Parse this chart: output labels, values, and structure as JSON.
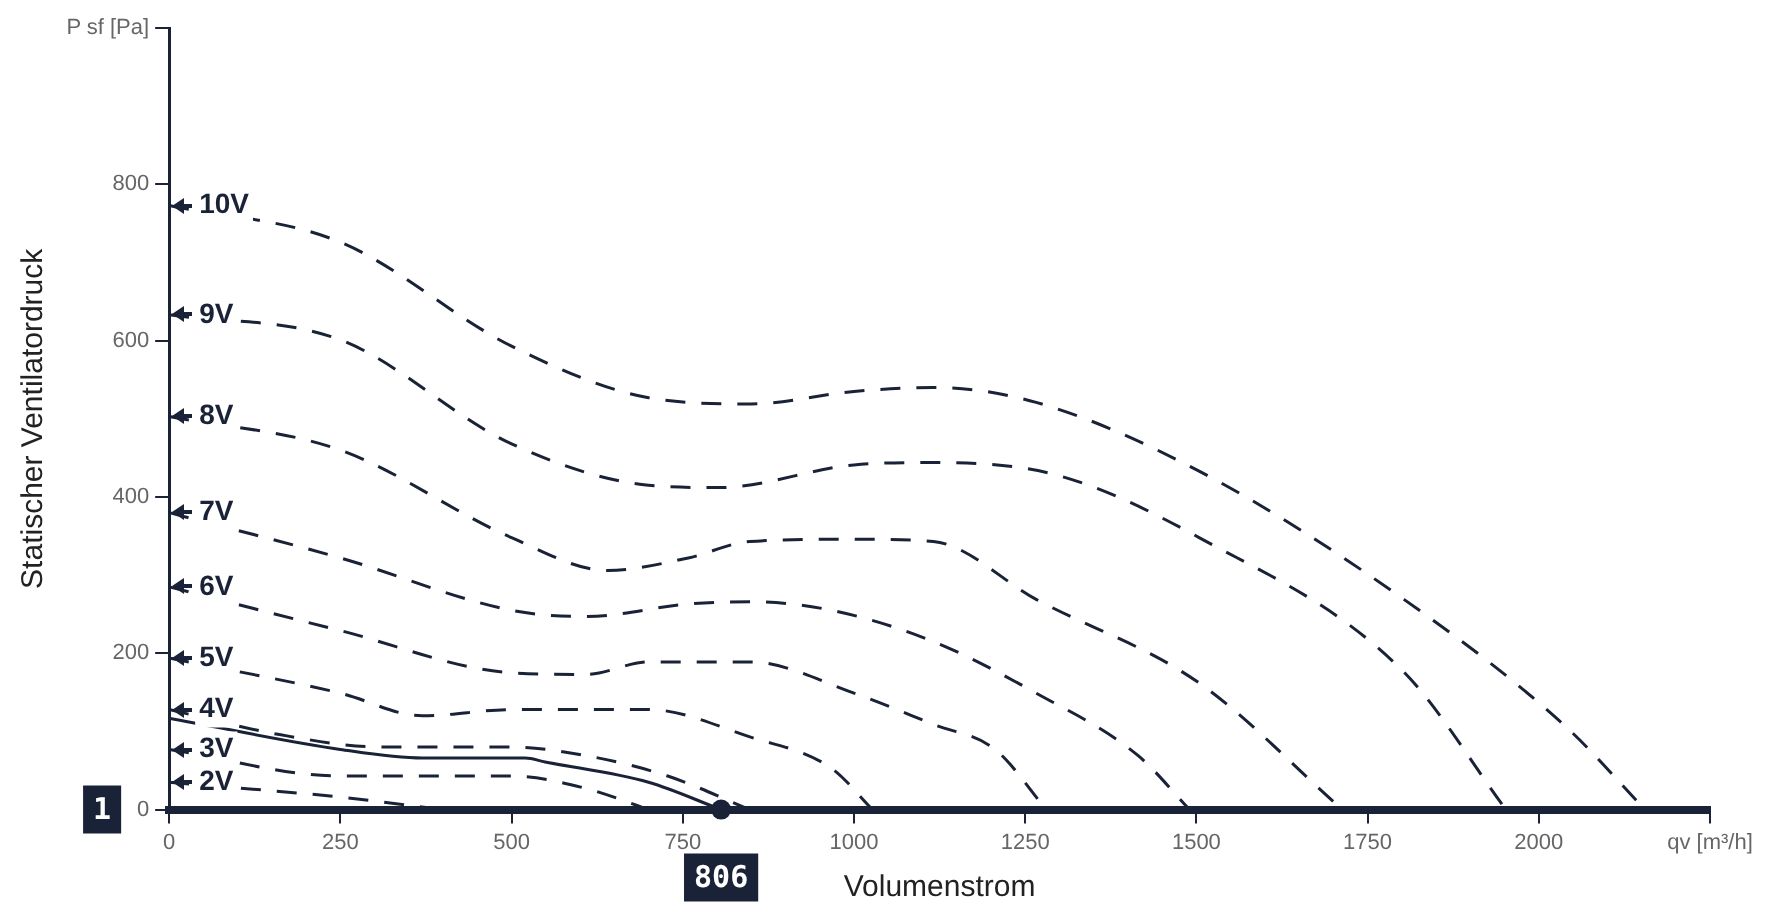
{
  "chart_data": {
    "type": "line",
    "xlabel": "Volumenstrom",
    "ylabel": "Statischer Ventilatordruck",
    "xlim": [
      0,
      2250
    ],
    "ylim": [
      0,
      1000
    ],
    "xticks": [
      0,
      250,
      500,
      750,
      1000,
      1250,
      1500,
      1750,
      2000,
      {
        "value": 2250,
        "label": "qv [m³/h]"
      }
    ],
    "yticks": [
      0,
      200,
      400,
      600,
      800,
      {
        "value": 1000,
        "label": "P sf [Pa]"
      }
    ],
    "grid": false,
    "legend": "left",
    "marker": "none",
    "series": [
      {
        "name": "10V",
        "color": "#1a2238",
        "line_style": "dashed",
        "x": [
          0,
          250,
          500,
          700,
          850,
          1000,
          1116,
          1266,
          1504,
          1803,
          2042,
          2155
        ],
        "values": [
          773,
          726,
          593,
          527,
          519,
          535,
          540,
          521,
          433,
          269,
          104,
          0
        ]
      },
      {
        "name": "9V",
        "color": "#1a2238",
        "line_style": "dashed",
        "x": [
          0,
          250,
          500,
          700,
          803,
          1000,
          1116,
          1296,
          1504,
          1803,
          1952
        ],
        "values": [
          633,
          601,
          468,
          415,
          412,
          441,
          444,
          428,
          348,
          176,
          0
        ]
      },
      {
        "name": "8V",
        "color": "#1a2238",
        "line_style": "dashed",
        "x": [
          0,
          250,
          500,
          640,
          758,
          848,
          1000,
          1116,
          1266,
          1504,
          1713
        ],
        "values": [
          503,
          460,
          348,
          306,
          322,
          343,
          346,
          343,
          269,
          162,
          0
        ]
      },
      {
        "name": "7V",
        "color": "#1a2238",
        "line_style": "dashed",
        "x": [
          0,
          250,
          500,
          609,
          758,
          848,
          967,
          1116,
          1266,
          1415,
          1490
        ],
        "values": [
          380,
          322,
          255,
          247,
          263,
          266,
          255,
          215,
          149,
          69,
          0
        ]
      },
      {
        "name": "6V",
        "color": "#1a2238",
        "line_style": "dashed",
        "x": [
          0,
          250,
          500,
          609,
          700,
          848,
          1000,
          1116,
          1206,
          1281
        ],
        "values": [
          285,
          229,
          175,
          173,
          189,
          189,
          149,
          109,
          77,
          0
        ]
      },
      {
        "name": "5V",
        "color": "#1a2238",
        "line_style": "dashed",
        "x": [
          0,
          250,
          370,
          500,
          700,
          848,
          967,
          1027
        ],
        "values": [
          194,
          149,
          120,
          128,
          128,
          93,
          53,
          0
        ]
      },
      {
        "name": "4V",
        "color": "#1a2238",
        "line_style": "dashed",
        "x": [
          0,
          161,
          310,
          500,
          609,
          728,
          848
        ],
        "values": [
          128,
          96,
          80,
          80,
          69,
          43,
          0
        ]
      },
      {
        "name": "3V",
        "color": "#1a2238",
        "line_style": "dashed",
        "x": [
          0,
          250,
          500,
          609,
          700
        ],
        "values": [
          77,
          43,
          43,
          27,
          0
        ]
      },
      {
        "name": "2V",
        "color": "#1a2238",
        "line_style": "dashed",
        "x": [
          0,
          250,
          400
        ],
        "values": [
          35,
          16,
          0
        ]
      },
      {
        "color": "#1a2238",
        "line_style": "solid",
        "x": [
          0,
          250,
          370,
          520,
          549,
          700,
          806
        ],
        "values": [
          117,
          77,
          66,
          66,
          61,
          35,
          0
        ]
      }
    ],
    "annotations": [
      "1",
      {
        "text": "806",
        "x": 806,
        "y": 0
      }
    ]
  }
}
